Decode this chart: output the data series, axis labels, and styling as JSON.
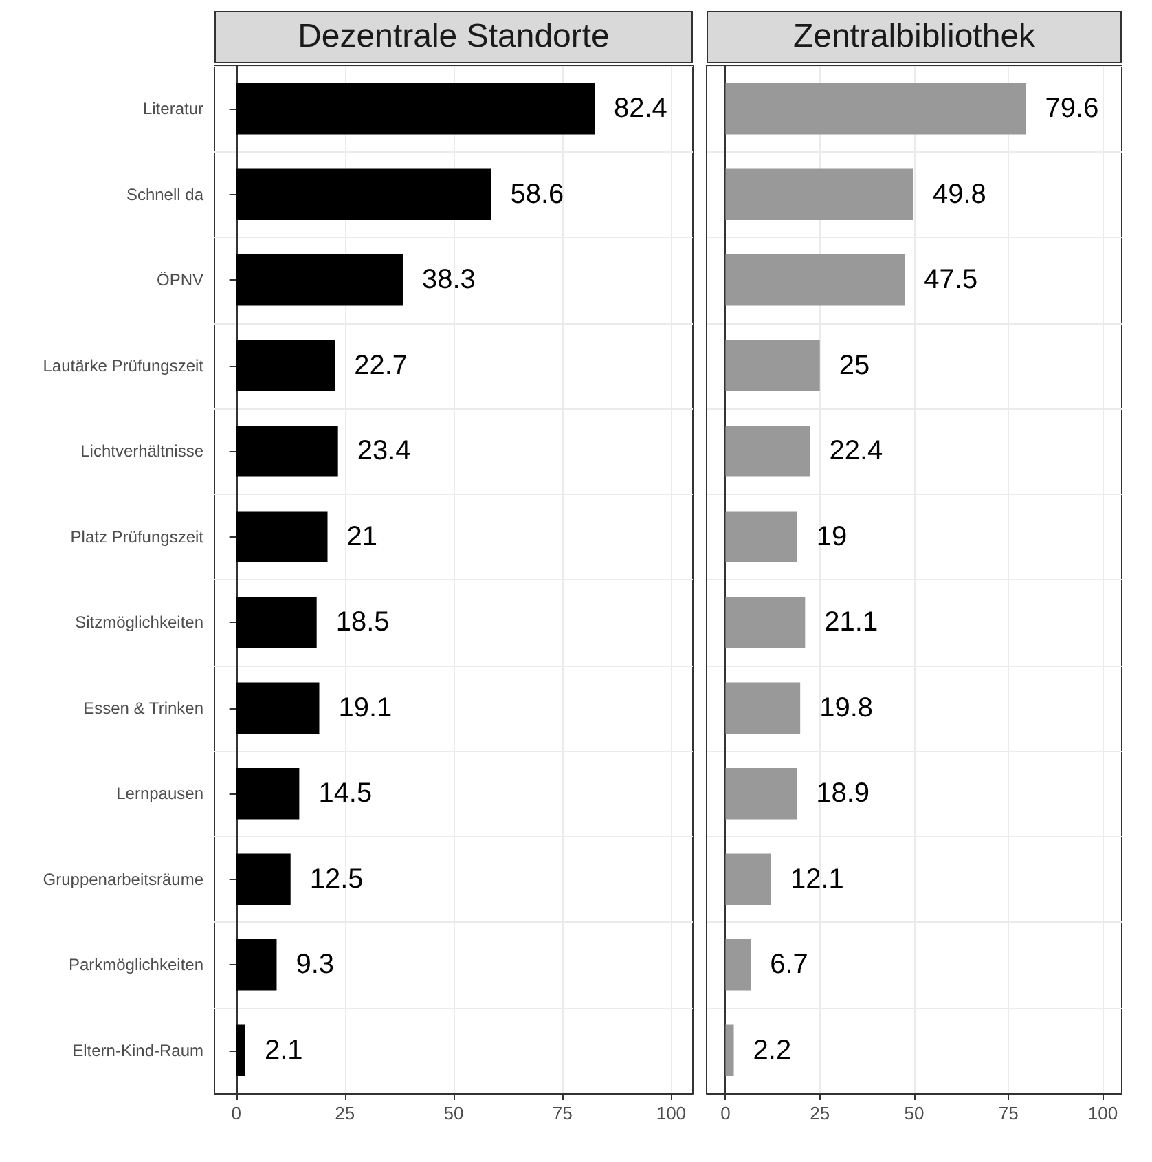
{
  "chart_data": [
    {
      "type": "bar",
      "orientation": "horizontal",
      "title": "Dezentrale Standorte",
      "categories": [
        "Literatur",
        "Schnell da",
        "ÖPNV",
        "Lautärke Prüfungszeit",
        "Lichtverhältnisse",
        "Platz Prüfungszeit",
        "Sitzmöglichkeiten",
        "Essen & Trinken",
        "Lernpausen",
        "Gruppenarbeitsräume",
        "Parkmöglichkeiten",
        "Eltern-Kind-Raum"
      ],
      "values": [
        82.4,
        58.6,
        38.3,
        22.7,
        23.4,
        21,
        18.5,
        19.1,
        14.5,
        12.5,
        9.3,
        2.1
      ],
      "color": "#000000",
      "xlim": [
        -5,
        105
      ],
      "xticks": [
        0,
        25,
        50,
        75,
        100
      ],
      "data_labels": true,
      "grid": true
    },
    {
      "type": "bar",
      "orientation": "horizontal",
      "title": "Zentralbibliothek",
      "categories": [
        "Literatur",
        "Schnell da",
        "ÖPNV",
        "Lautärke Prüfungszeit",
        "Lichtverhältnisse",
        "Platz Prüfungszeit",
        "Sitzmöglichkeiten",
        "Essen & Trinken",
        "Lernpausen",
        "Gruppenarbeitsräume",
        "Parkmöglichkeiten",
        "Eltern-Kind-Raum"
      ],
      "values": [
        79.6,
        49.8,
        47.5,
        25,
        22.4,
        19,
        21.1,
        19.8,
        18.9,
        12.1,
        6.7,
        2.2
      ],
      "color": "#999999",
      "xlim": [
        -5,
        105
      ],
      "xticks": [
        0,
        25,
        50,
        75,
        100
      ],
      "data_labels": true,
      "grid": true,
      "tick_labels": "x"
    }
  ]
}
